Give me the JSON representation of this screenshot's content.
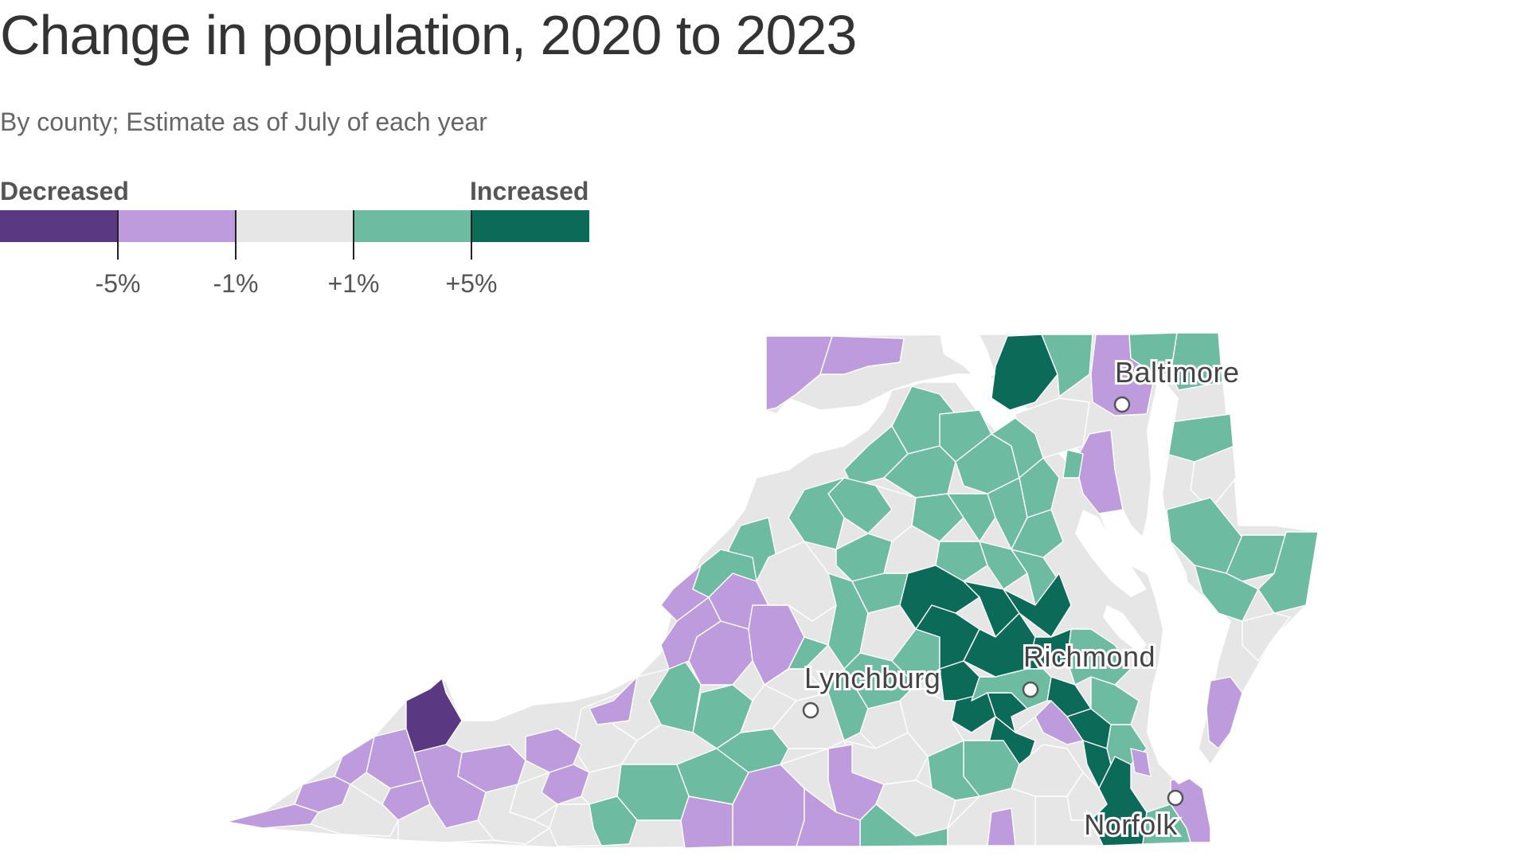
{
  "title": "Change in population, 2020 to 2023",
  "subtitle": "By county; Estimate as of July of each year",
  "legend": {
    "left_label": "Decreased",
    "right_label": "Increased",
    "bins": [
      {
        "color": "#5a3882"
      },
      {
        "color": "#be9bdc"
      },
      {
        "color": "#e6e6e6"
      },
      {
        "color": "#6dbba1"
      },
      {
        "color": "#0c6b58"
      }
    ],
    "thresholds": [
      "-5%",
      "-1%",
      "+1%",
      "+5%"
    ]
  },
  "map": {
    "colors": {
      "strong_decrease": "#5a3882",
      "decrease": "#be9bdc",
      "flat": "#e6e6e6",
      "increase": "#6dbba1",
      "strong_increase": "#0c6b58",
      "water": "#ffffff"
    },
    "cities": [
      {
        "name": "Baltimore"
      },
      {
        "name": "Richmond"
      },
      {
        "name": "Lynchburg"
      },
      {
        "name": "Norfolk"
      }
    ]
  }
}
